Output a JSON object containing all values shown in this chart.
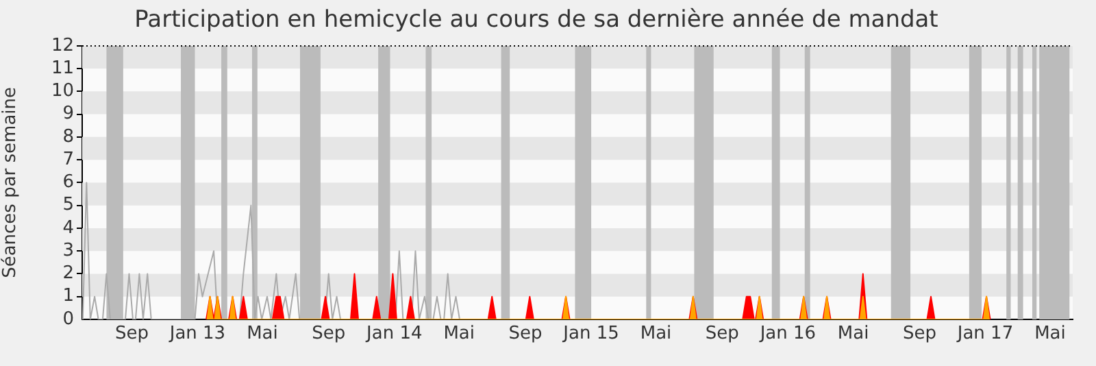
{
  "chart_data": {
    "type": "area",
    "title": "Participation en hemicycle au cours de sa dernière année de mandat",
    "ylabel": "Séances par semaine",
    "xlim": [
      "2012-06-15",
      "2017-06-26"
    ],
    "xticks": [
      {
        "value": "2012-09-15",
        "label": "Sep"
      },
      {
        "value": "2013-01-15",
        "label": "Jan 13"
      },
      {
        "value": "2013-05-15",
        "label": "Mai"
      },
      {
        "value": "2013-09-15",
        "label": "Sep"
      },
      {
        "value": "2014-01-15",
        "label": "Jan 14"
      },
      {
        "value": "2014-05-15",
        "label": "Mai"
      },
      {
        "value": "2014-09-15",
        "label": "Sep"
      },
      {
        "value": "2015-01-15",
        "label": "Jan 15"
      },
      {
        "value": "2015-05-15",
        "label": "Mai"
      },
      {
        "value": "2015-09-15",
        "label": "Sep"
      },
      {
        "value": "2016-01-15",
        "label": "Jan 16"
      },
      {
        "value": "2016-05-15",
        "label": "Mai"
      },
      {
        "value": "2016-09-15",
        "label": "Sep"
      },
      {
        "value": "2017-01-15",
        "label": "Jan 17"
      },
      {
        "value": "2017-05-15",
        "label": "Mai"
      }
    ],
    "ylim": [
      0,
      12
    ],
    "yticks": [
      0,
      1,
      2,
      3,
      4,
      5,
      6,
      7,
      8,
      9,
      10,
      11,
      12
    ],
    "grid": false,
    "legend": false,
    "ref_lines": [
      {
        "axis": "y",
        "value": 12,
        "color": "#000000",
        "line_style": "dotted"
      }
    ],
    "bands": [
      {
        "axis": "y",
        "from": 1,
        "to": 2,
        "color": "#e6e6e6"
      },
      {
        "axis": "y",
        "from": 3,
        "to": 4,
        "color": "#e6e6e6"
      },
      {
        "axis": "y",
        "from": 5,
        "to": 6,
        "color": "#e6e6e6"
      },
      {
        "axis": "y",
        "from": 7,
        "to": 8,
        "color": "#e6e6e6"
      },
      {
        "axis": "y",
        "from": 9,
        "to": 10,
        "color": "#e6e6e6"
      },
      {
        "axis": "y",
        "from": 11,
        "to": 12,
        "color": "#e6e6e6"
      },
      {
        "axis": "x",
        "from": "2012-07-30",
        "to": "2012-08-30",
        "color": "#bbbbbb"
      },
      {
        "axis": "x",
        "from": "2012-12-15",
        "to": "2013-01-10",
        "color": "#bbbbbb"
      },
      {
        "axis": "x",
        "from": "2013-02-28",
        "to": "2013-03-11",
        "color": "#bbbbbb"
      },
      {
        "axis": "x",
        "from": "2013-04-26",
        "to": "2013-05-06",
        "color": "#bbbbbb"
      },
      {
        "axis": "x",
        "from": "2013-07-24",
        "to": "2013-08-31",
        "color": "#bbbbbb"
      },
      {
        "axis": "x",
        "from": "2013-12-16",
        "to": "2014-01-07",
        "color": "#bbbbbb"
      },
      {
        "axis": "x",
        "from": "2014-03-14",
        "to": "2014-03-25",
        "color": "#bbbbbb"
      },
      {
        "axis": "x",
        "from": "2014-08-01",
        "to": "2014-08-17",
        "color": "#bbbbbb"
      },
      {
        "axis": "x",
        "from": "2014-12-16",
        "to": "2015-01-15",
        "color": "#bbbbbb"
      },
      {
        "axis": "x",
        "from": "2015-04-27",
        "to": "2015-05-06",
        "color": "#bbbbbb"
      },
      {
        "axis": "x",
        "from": "2015-07-25",
        "to": "2015-08-30",
        "color": "#bbbbbb"
      },
      {
        "axis": "x",
        "from": "2015-12-16",
        "to": "2015-12-31",
        "color": "#bbbbbb"
      },
      {
        "axis": "x",
        "from": "2016-02-15",
        "to": "2016-02-25",
        "color": "#bbbbbb"
      },
      {
        "axis": "x",
        "from": "2016-07-24",
        "to": "2016-08-29",
        "color": "#bbbbbb"
      },
      {
        "axis": "x",
        "from": "2016-12-16",
        "to": "2017-01-08",
        "color": "#bbbbbb"
      },
      {
        "axis": "x",
        "from": "2017-02-23",
        "to": "2017-03-03",
        "color": "#bbbbbb"
      },
      {
        "axis": "x",
        "from": "2017-03-16",
        "to": "2017-03-26",
        "color": "#bbbbbb"
      },
      {
        "axis": "x",
        "from": "2017-04-12",
        "to": "2017-04-20",
        "color": "#bbbbbb"
      },
      {
        "axis": "x",
        "from": "2017-04-25",
        "to": "2017-06-20",
        "color": "#bbbbbb"
      }
    ],
    "series": [
      {
        "type": "line",
        "color": "#aaaaaa",
        "x": [
          "2012-06-16",
          "2012-06-23",
          "2012-06-30",
          "2012-07-08",
          "2012-07-15",
          "2012-07-23",
          "2012-07-30",
          "2012-08-06",
          "2012-09-03",
          "2012-09-10",
          "2012-09-17",
          "2012-09-22",
          "2012-09-29",
          "2012-10-06",
          "2012-10-14",
          "2012-10-21",
          "2013-01-10",
          "2013-01-17",
          "2013-01-24",
          "2013-02-14",
          "2013-02-21",
          "2013-04-03",
          "2013-04-10",
          "2013-04-24",
          "2013-05-01",
          "2013-05-07",
          "2013-05-14",
          "2013-05-24",
          "2013-05-31",
          "2013-06-10",
          "2013-06-17",
          "2013-06-27",
          "2013-07-04",
          "2013-07-16",
          "2013-07-23",
          "2013-09-08",
          "2013-09-15",
          "2013-09-22",
          "2013-09-30",
          "2013-10-07",
          "2014-01-17",
          "2014-01-24",
          "2014-01-31",
          "2014-02-16",
          "2014-02-23",
          "2014-03-02",
          "2014-03-12",
          "2014-03-19",
          "2014-03-28",
          "2014-04-04",
          "2014-04-11",
          "2014-04-17",
          "2014-04-24",
          "2014-05-01",
          "2014-05-09",
          "2014-05-16"
        ],
        "values": [
          0,
          6,
          0,
          1,
          0,
          0,
          2,
          0,
          0,
          2,
          0,
          0,
          2,
          0,
          2,
          0,
          0,
          2,
          1,
          3,
          0,
          0,
          2,
          5,
          0,
          1,
          0,
          1,
          0,
          2,
          0,
          1,
          0,
          2,
          0,
          0,
          2,
          0,
          1,
          0,
          0,
          3,
          0,
          0,
          3,
          0,
          1,
          0,
          0,
          1,
          0,
          0,
          2,
          0,
          1,
          0
        ]
      },
      {
        "color": "#ff0000",
        "x": [
          "2013-01-31",
          "2013-02-07",
          "2013-02-14",
          "2013-02-21",
          "2013-02-28",
          "2013-03-14",
          "2013-03-21",
          "2013-03-28",
          "2013-04-03",
          "2013-04-10",
          "2013-04-17",
          "2013-06-03",
          "2013-06-10",
          "2013-06-17",
          "2013-06-24",
          "2013-09-02",
          "2013-09-09",
          "2013-09-16",
          "2013-10-26",
          "2013-11-02",
          "2013-11-09",
          "2013-12-06",
          "2013-12-13",
          "2013-12-20",
          "2014-01-05",
          "2014-01-12",
          "2014-01-19",
          "2014-02-07",
          "2014-02-14",
          "2014-02-21",
          "2014-07-08",
          "2014-07-15",
          "2014-07-22",
          "2014-09-16",
          "2014-09-23",
          "2014-09-30",
          "2014-11-22",
          "2014-11-29",
          "2014-12-06",
          "2015-07-16",
          "2015-07-23",
          "2015-07-30",
          "2015-10-23",
          "2015-10-30",
          "2015-11-06",
          "2015-11-13",
          "2015-11-16",
          "2015-11-23",
          "2015-11-30",
          "2016-02-06",
          "2016-02-13",
          "2016-02-20",
          "2016-03-20",
          "2016-03-27",
          "2016-04-03",
          "2016-05-26",
          "2016-06-02",
          "2016-06-09",
          "2016-09-29",
          "2016-10-06",
          "2016-10-13",
          "2017-01-10",
          "2017-01-17",
          "2017-01-24"
        ],
        "values": [
          0,
          1,
          0,
          1,
          0,
          0,
          1,
          0,
          0,
          1,
          0,
          0,
          1,
          1,
          0,
          0,
          1,
          0,
          0,
          2,
          0,
          0,
          1,
          0,
          0,
          2,
          0,
          0,
          1,
          0,
          0,
          1,
          0,
          0,
          1,
          0,
          0,
          1,
          0,
          0,
          1,
          0,
          0,
          1,
          1,
          0,
          0,
          1,
          0,
          0,
          1,
          0,
          0,
          1,
          0,
          0,
          2,
          0,
          0,
          1,
          0,
          0,
          1,
          0
        ]
      },
      {
        "color": "#ffa500",
        "x": [
          "2013-02-02",
          "2013-02-07",
          "2013-02-12",
          "2013-02-16",
          "2013-02-21",
          "2013-02-26",
          "2013-03-16",
          "2013-03-21",
          "2013-03-26",
          "2014-11-24",
          "2014-11-29",
          "2014-12-04",
          "2015-07-18",
          "2015-07-23",
          "2015-07-28",
          "2015-11-18",
          "2015-11-23",
          "2015-11-28",
          "2016-02-08",
          "2016-02-13",
          "2016-02-18",
          "2016-03-22",
          "2016-03-27",
          "2016-04-01",
          "2016-05-28",
          "2016-06-02",
          "2016-06-07",
          "2017-01-12",
          "2017-01-17",
          "2017-01-22"
        ],
        "values": [
          0,
          1,
          0,
          0,
          1,
          0,
          0,
          1,
          0,
          0,
          1,
          0,
          0,
          1,
          0,
          0,
          1,
          0,
          0,
          1,
          0,
          0,
          1,
          0,
          0,
          1,
          0,
          0,
          1,
          0
        ]
      }
    ]
  }
}
